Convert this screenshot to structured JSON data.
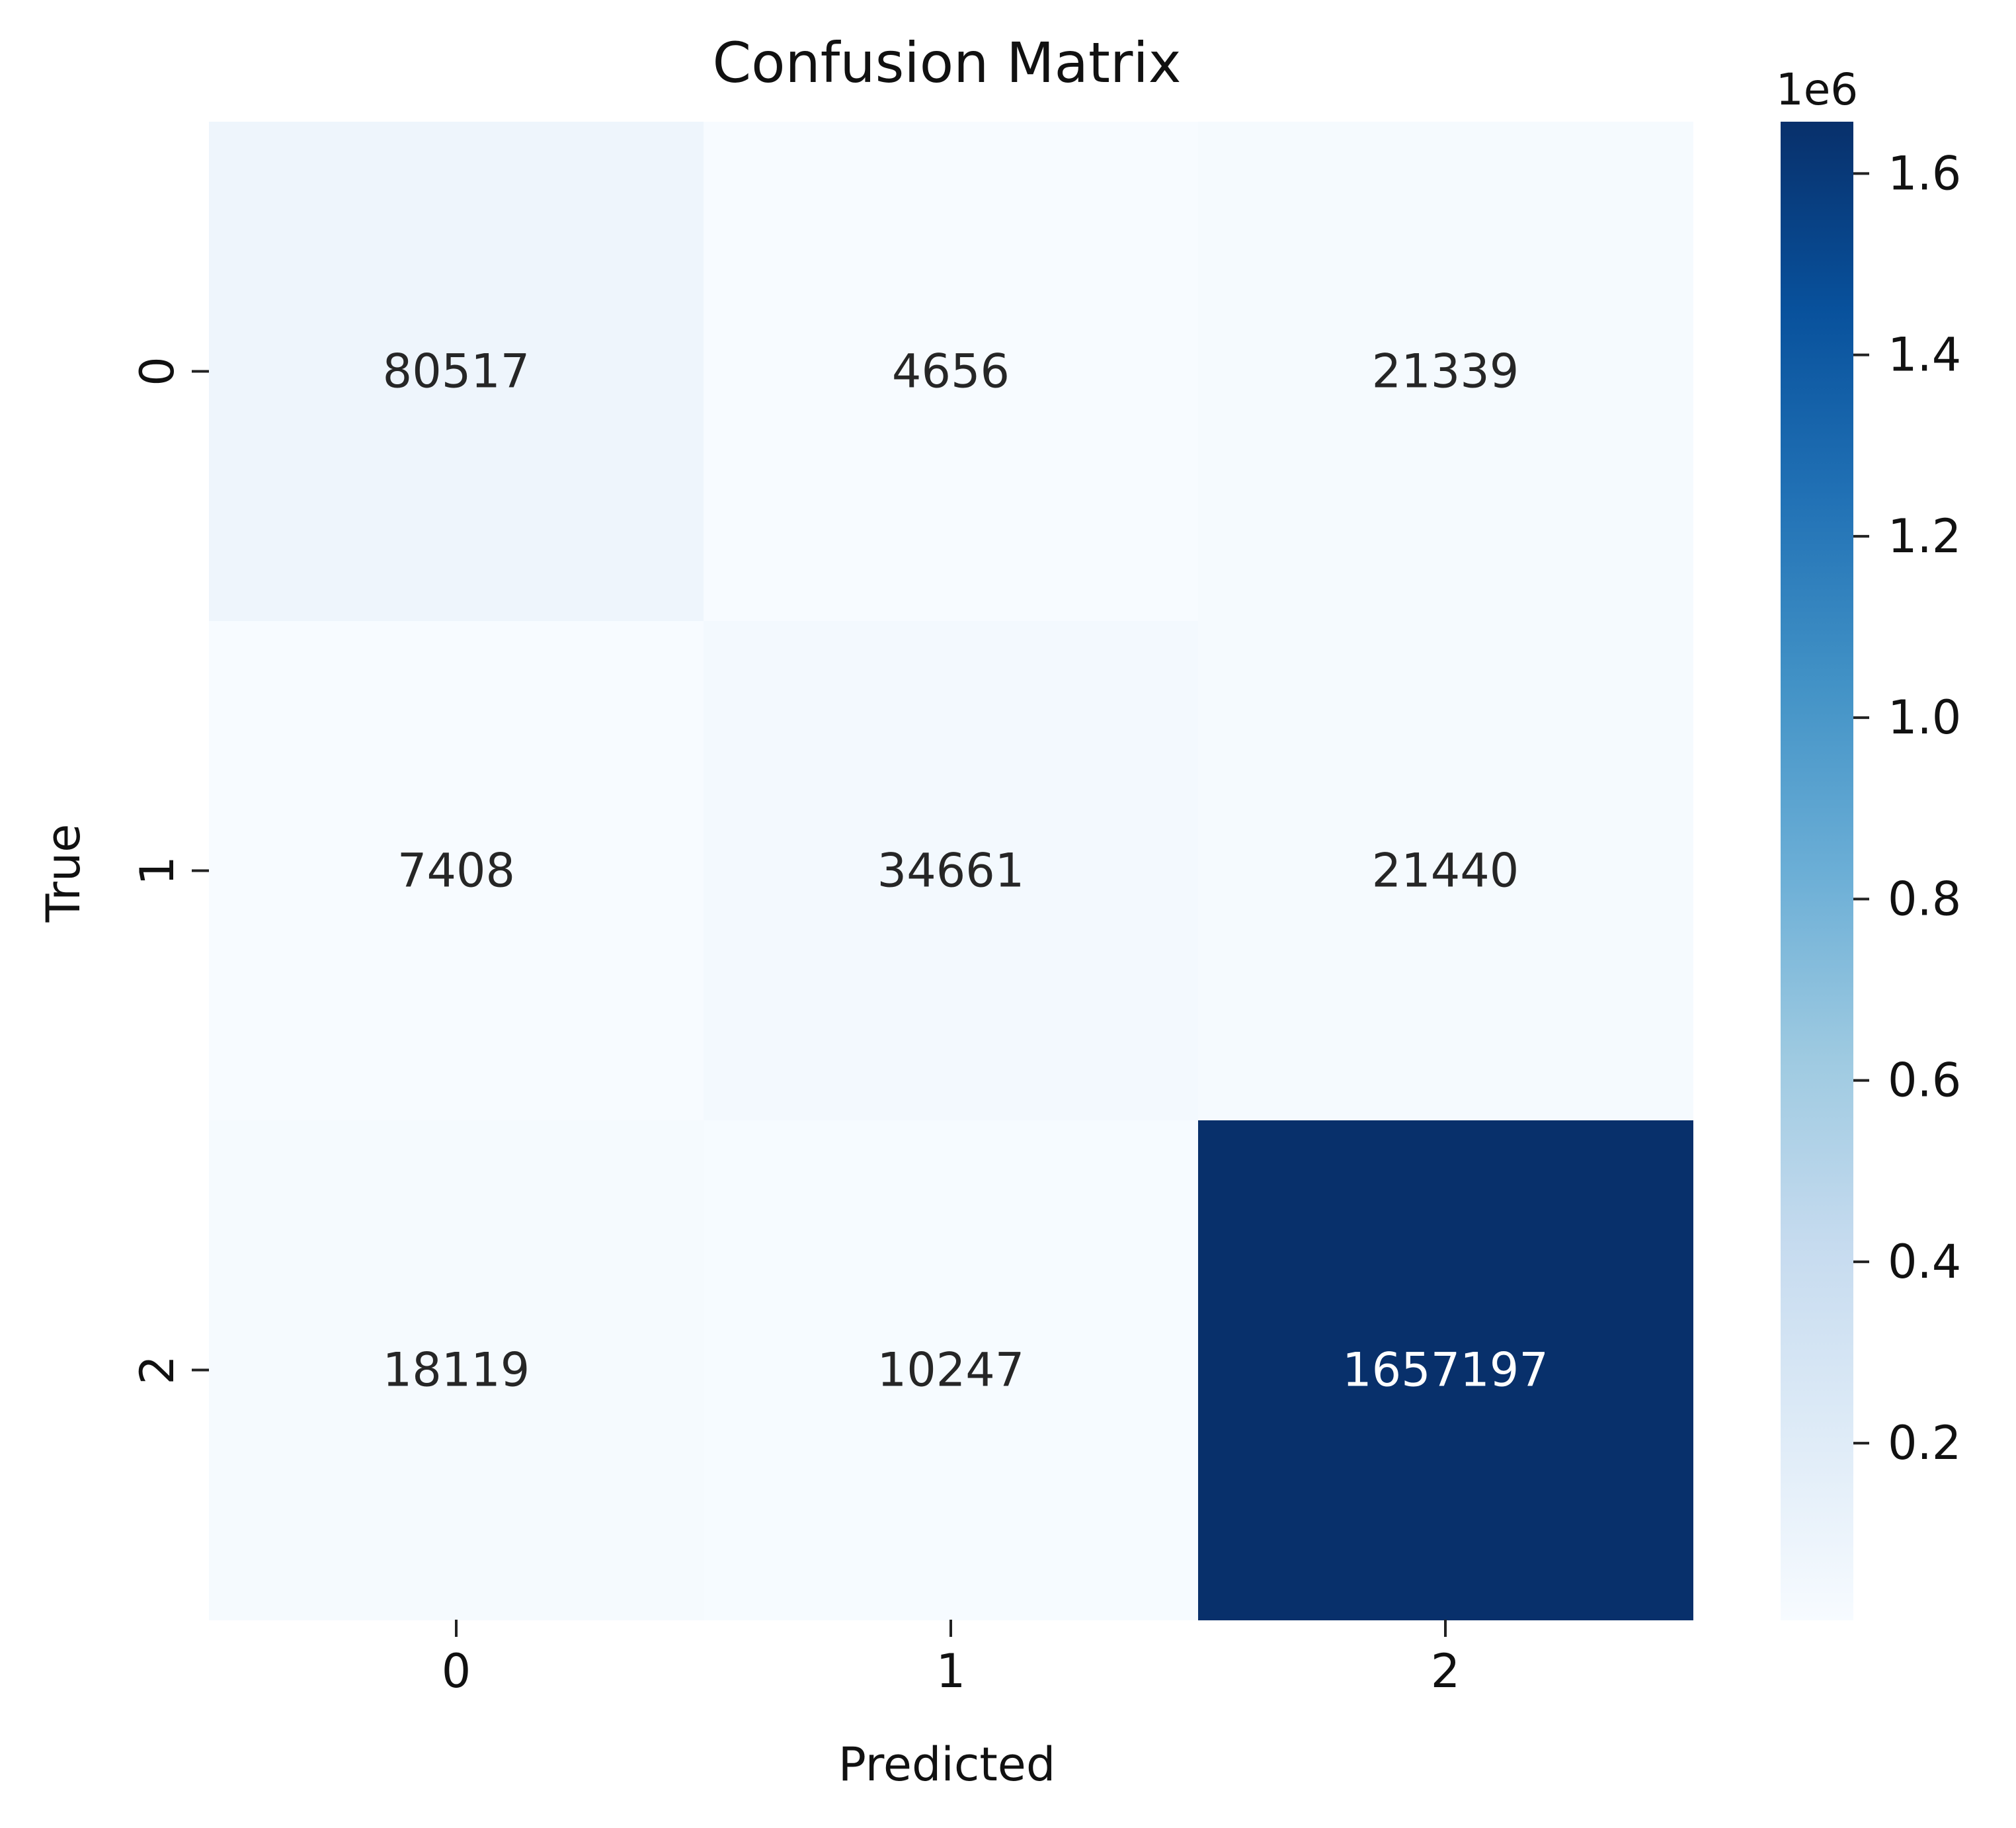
{
  "chart_data": {
    "type": "heatmap",
    "title": "Confusion Matrix",
    "xlabel": "Predicted",
    "ylabel": "True",
    "x_categories": [
      "0",
      "1",
      "2"
    ],
    "y_categories": [
      "0",
      "1",
      "2"
    ],
    "values": [
      [
        80517,
        4656,
        21339
      ],
      [
        7408,
        34661,
        21440
      ],
      [
        18119,
        10247,
        1657197
      ]
    ],
    "colormap": "Blues",
    "colorbar": {
      "range": [
        4656,
        1657197
      ],
      "ticks": [
        0.2,
        0.4,
        0.6,
        0.8,
        1.0,
        1.2,
        1.4,
        1.6
      ],
      "tick_labels": [
        "0.2",
        "0.4",
        "0.6",
        "0.8",
        "1.0",
        "1.2",
        "1.4",
        "1.6"
      ],
      "offset_label": "1e6",
      "multiplier": 1000000
    },
    "grid": false
  }
}
